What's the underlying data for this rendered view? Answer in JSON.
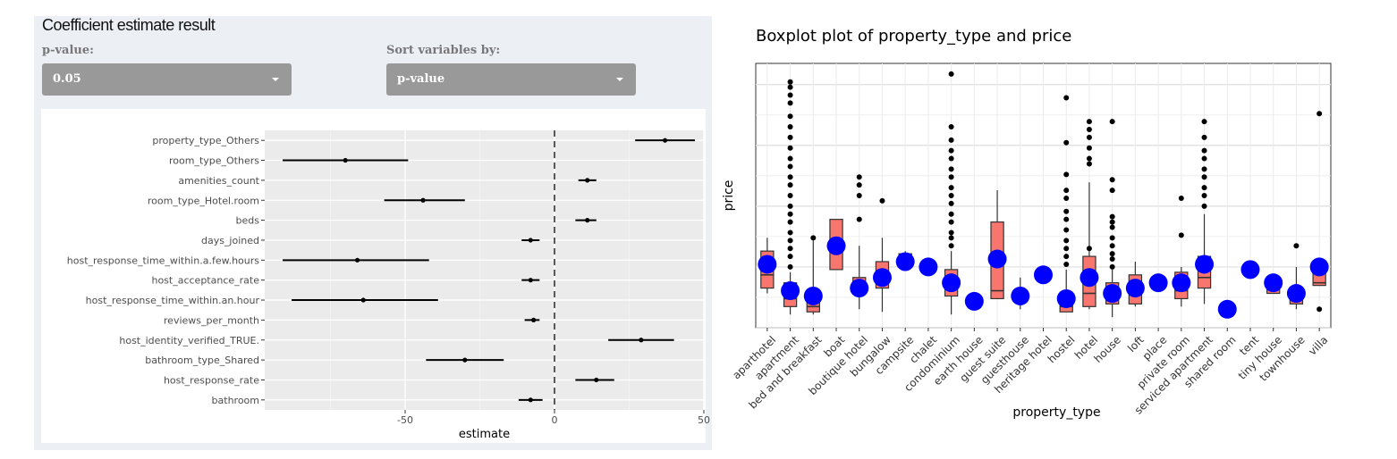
{
  "left": {
    "title": "Coefficient estimate result",
    "pvalue_label": "p-value:",
    "pvalue_selected": "0.05",
    "sort_label": "Sort variables by:",
    "sort_selected": "p-value"
  },
  "chart_data": [
    {
      "type": "forest",
      "title": "",
      "xlabel": "estimate",
      "ylabel": "",
      "xlim": [
        -97,
        50
      ],
      "xticks": [
        -50,
        0,
        50
      ],
      "reference_line": 0,
      "grid": true,
      "variables": [
        {
          "name": "property_type_Others",
          "estimate": 37,
          "low": 27,
          "high": 47
        },
        {
          "name": "room_type_Others",
          "estimate": -70,
          "low": -91,
          "high": -49
        },
        {
          "name": "amenities_count",
          "estimate": 11,
          "low": 8,
          "high": 14
        },
        {
          "name": "room_type_Hotel.room",
          "estimate": -44,
          "low": -57,
          "high": -30
        },
        {
          "name": "beds",
          "estimate": 11,
          "low": 7,
          "high": 14
        },
        {
          "name": "days_joined",
          "estimate": -8,
          "low": -11,
          "high": -5
        },
        {
          "name": "host_response_time_within.a.few.hours",
          "estimate": -66,
          "low": -91,
          "high": -42
        },
        {
          "name": "host_acceptance_rate",
          "estimate": -8,
          "low": -11,
          "high": -5
        },
        {
          "name": "host_response_time_within.an.hour",
          "estimate": -64,
          "low": -88,
          "high": -39
        },
        {
          "name": "reviews_per_month",
          "estimate": -7,
          "low": -10,
          "high": -5
        },
        {
          "name": "host_identity_verified_TRUE.",
          "estimate": 29,
          "low": 18,
          "high": 40
        },
        {
          "name": "bathroom_type_Shared",
          "estimate": -30,
          "low": -43,
          "high": -17
        },
        {
          "name": "host_response_rate",
          "estimate": 14,
          "low": 7,
          "high": 20
        },
        {
          "name": "bathroom",
          "estimate": -8,
          "low": -12,
          "high": -4
        }
      ]
    },
    {
      "type": "boxplot",
      "title": "Boxplot plot of  property_type  and  price",
      "xlabel": "property_type",
      "ylabel": "price",
      "ylim": [
        0,
        100
      ],
      "grid": true,
      "box_color": "#f8766d",
      "mean_color": "#0000ff",
      "categories": [
        {
          "name": "aparthotel",
          "min": 13,
          "q1": 15,
          "median": 20,
          "q3": 29,
          "max": 34,
          "mean": 24,
          "outliers": []
        },
        {
          "name": "apartment",
          "min": 5,
          "q1": 8,
          "median": 11,
          "q3": 17,
          "max": 21,
          "mean": 14,
          "outliers": [
            23,
            27,
            30,
            33,
            36,
            40,
            43,
            46,
            50,
            54,
            57,
            61,
            64,
            68,
            72,
            76,
            80,
            85,
            88,
            91,
            93
          ]
        },
        {
          "name": "bed and breakfast",
          "min": 5,
          "q1": 6,
          "median": 8,
          "q3": 12,
          "max": 33,
          "mean": 12,
          "outliers": [
            34
          ]
        },
        {
          "name": "boat",
          "min": 22,
          "q1": 22,
          "median": 30,
          "q3": 41,
          "max": 41,
          "mean": 31,
          "outliers": []
        },
        {
          "name": "boutique hotel",
          "min": 7,
          "q1": 13,
          "median": 14,
          "q3": 19,
          "max": 31,
          "mean": 15,
          "outliers": [
            41,
            50,
            54,
            57
          ]
        },
        {
          "name": "bungalow",
          "min": 6,
          "q1": 15,
          "median": 21,
          "q3": 25,
          "max": 34,
          "mean": 19,
          "outliers": [
            48
          ]
        },
        {
          "name": "campsite",
          "min": 22,
          "q1": 23,
          "median": 25,
          "q3": 28,
          "max": 29,
          "mean": 25,
          "outliers": []
        },
        {
          "name": "chalet",
          "min": 23,
          "q1": 23,
          "median": 23,
          "q3": 23,
          "max": 23,
          "mean": 23,
          "outliers": []
        },
        {
          "name": "condominium",
          "min": 5,
          "q1": 12,
          "median": 17,
          "q3": 22,
          "max": 29,
          "mean": 17,
          "outliers": [
            31,
            34,
            36,
            40,
            43,
            47,
            50,
            53,
            57,
            60,
            64,
            67,
            71,
            76,
            96
          ]
        },
        {
          "name": "earth house",
          "min": 10,
          "q1": 10,
          "median": 10,
          "q3": 10,
          "max": 10,
          "mean": 10,
          "outliers": []
        },
        {
          "name": "guest suite",
          "min": 11,
          "q1": 11,
          "median": 14,
          "q3": 40,
          "max": 52,
          "mean": 26,
          "outliers": []
        },
        {
          "name": "guesthouse",
          "min": 7,
          "q1": 10,
          "median": 12,
          "q3": 14,
          "max": 19,
          "mean": 12,
          "outliers": []
        },
        {
          "name": "heritage hotel",
          "min": 20,
          "q1": 20,
          "median": 20,
          "q3": 20,
          "max": 20,
          "mean": 20,
          "outliers": []
        },
        {
          "name": "hostel",
          "min": 6,
          "q1": 6,
          "median": 8,
          "q3": 11,
          "max": 22,
          "mean": 11,
          "outliers": [
            24,
            27,
            30,
            33,
            37,
            41,
            44,
            49,
            52,
            58,
            70,
            87
          ]
        },
        {
          "name": "hotel",
          "min": 7,
          "q1": 8,
          "median": 13,
          "q3": 27,
          "max": 55,
          "mean": 19,
          "outliers": [
            30,
            62,
            64,
            68,
            72,
            75,
            78
          ]
        },
        {
          "name": "house",
          "min": 4,
          "q1": 9,
          "median": 11,
          "q3": 17,
          "max": 22,
          "mean": 13,
          "outliers": [
            23,
            26,
            28,
            31,
            34,
            38,
            40,
            42,
            52,
            56,
            78
          ]
        },
        {
          "name": "loft",
          "min": 8,
          "q1": 9,
          "median": 15,
          "q3": 20,
          "max": 25,
          "mean": 15,
          "outliers": []
        },
        {
          "name": "place",
          "min": 17,
          "q1": 17,
          "median": 17,
          "q3": 17,
          "max": 17,
          "mean": 17,
          "outliers": []
        },
        {
          "name": "private room",
          "min": 8,
          "q1": 11,
          "median": 14,
          "q3": 21,
          "max": 23,
          "mean": 17,
          "outliers": [
            35,
            49
          ]
        },
        {
          "name": "serviced apartment",
          "min": 9,
          "q1": 15,
          "median": 19,
          "q3": 27,
          "max": 43,
          "mean": 24,
          "outliers": [
            46,
            50,
            53,
            57,
            60,
            64,
            67,
            72,
            78
          ]
        },
        {
          "name": "shared room",
          "min": 7,
          "q1": 7,
          "median": 7,
          "q3": 7,
          "max": 7,
          "mean": 7,
          "outliers": []
        },
        {
          "name": "tent",
          "min": 22,
          "q1": 22,
          "median": 22,
          "q3": 22,
          "max": 22,
          "mean": 22,
          "outliers": []
        },
        {
          "name": "tiny house",
          "min": 13,
          "q1": 13,
          "median": 17,
          "q3": 19,
          "max": 19,
          "mean": 17,
          "outliers": []
        },
        {
          "name": "townhouse",
          "min": 7,
          "q1": 9,
          "median": 12,
          "q3": 15,
          "max": 23,
          "mean": 13,
          "outliers": [
            31
          ]
        },
        {
          "name": "villa",
          "min": 16,
          "q1": 16,
          "median": 17,
          "q3": 23,
          "max": 24,
          "mean": 23,
          "outliers": [
            7,
            81
          ]
        }
      ]
    }
  ]
}
